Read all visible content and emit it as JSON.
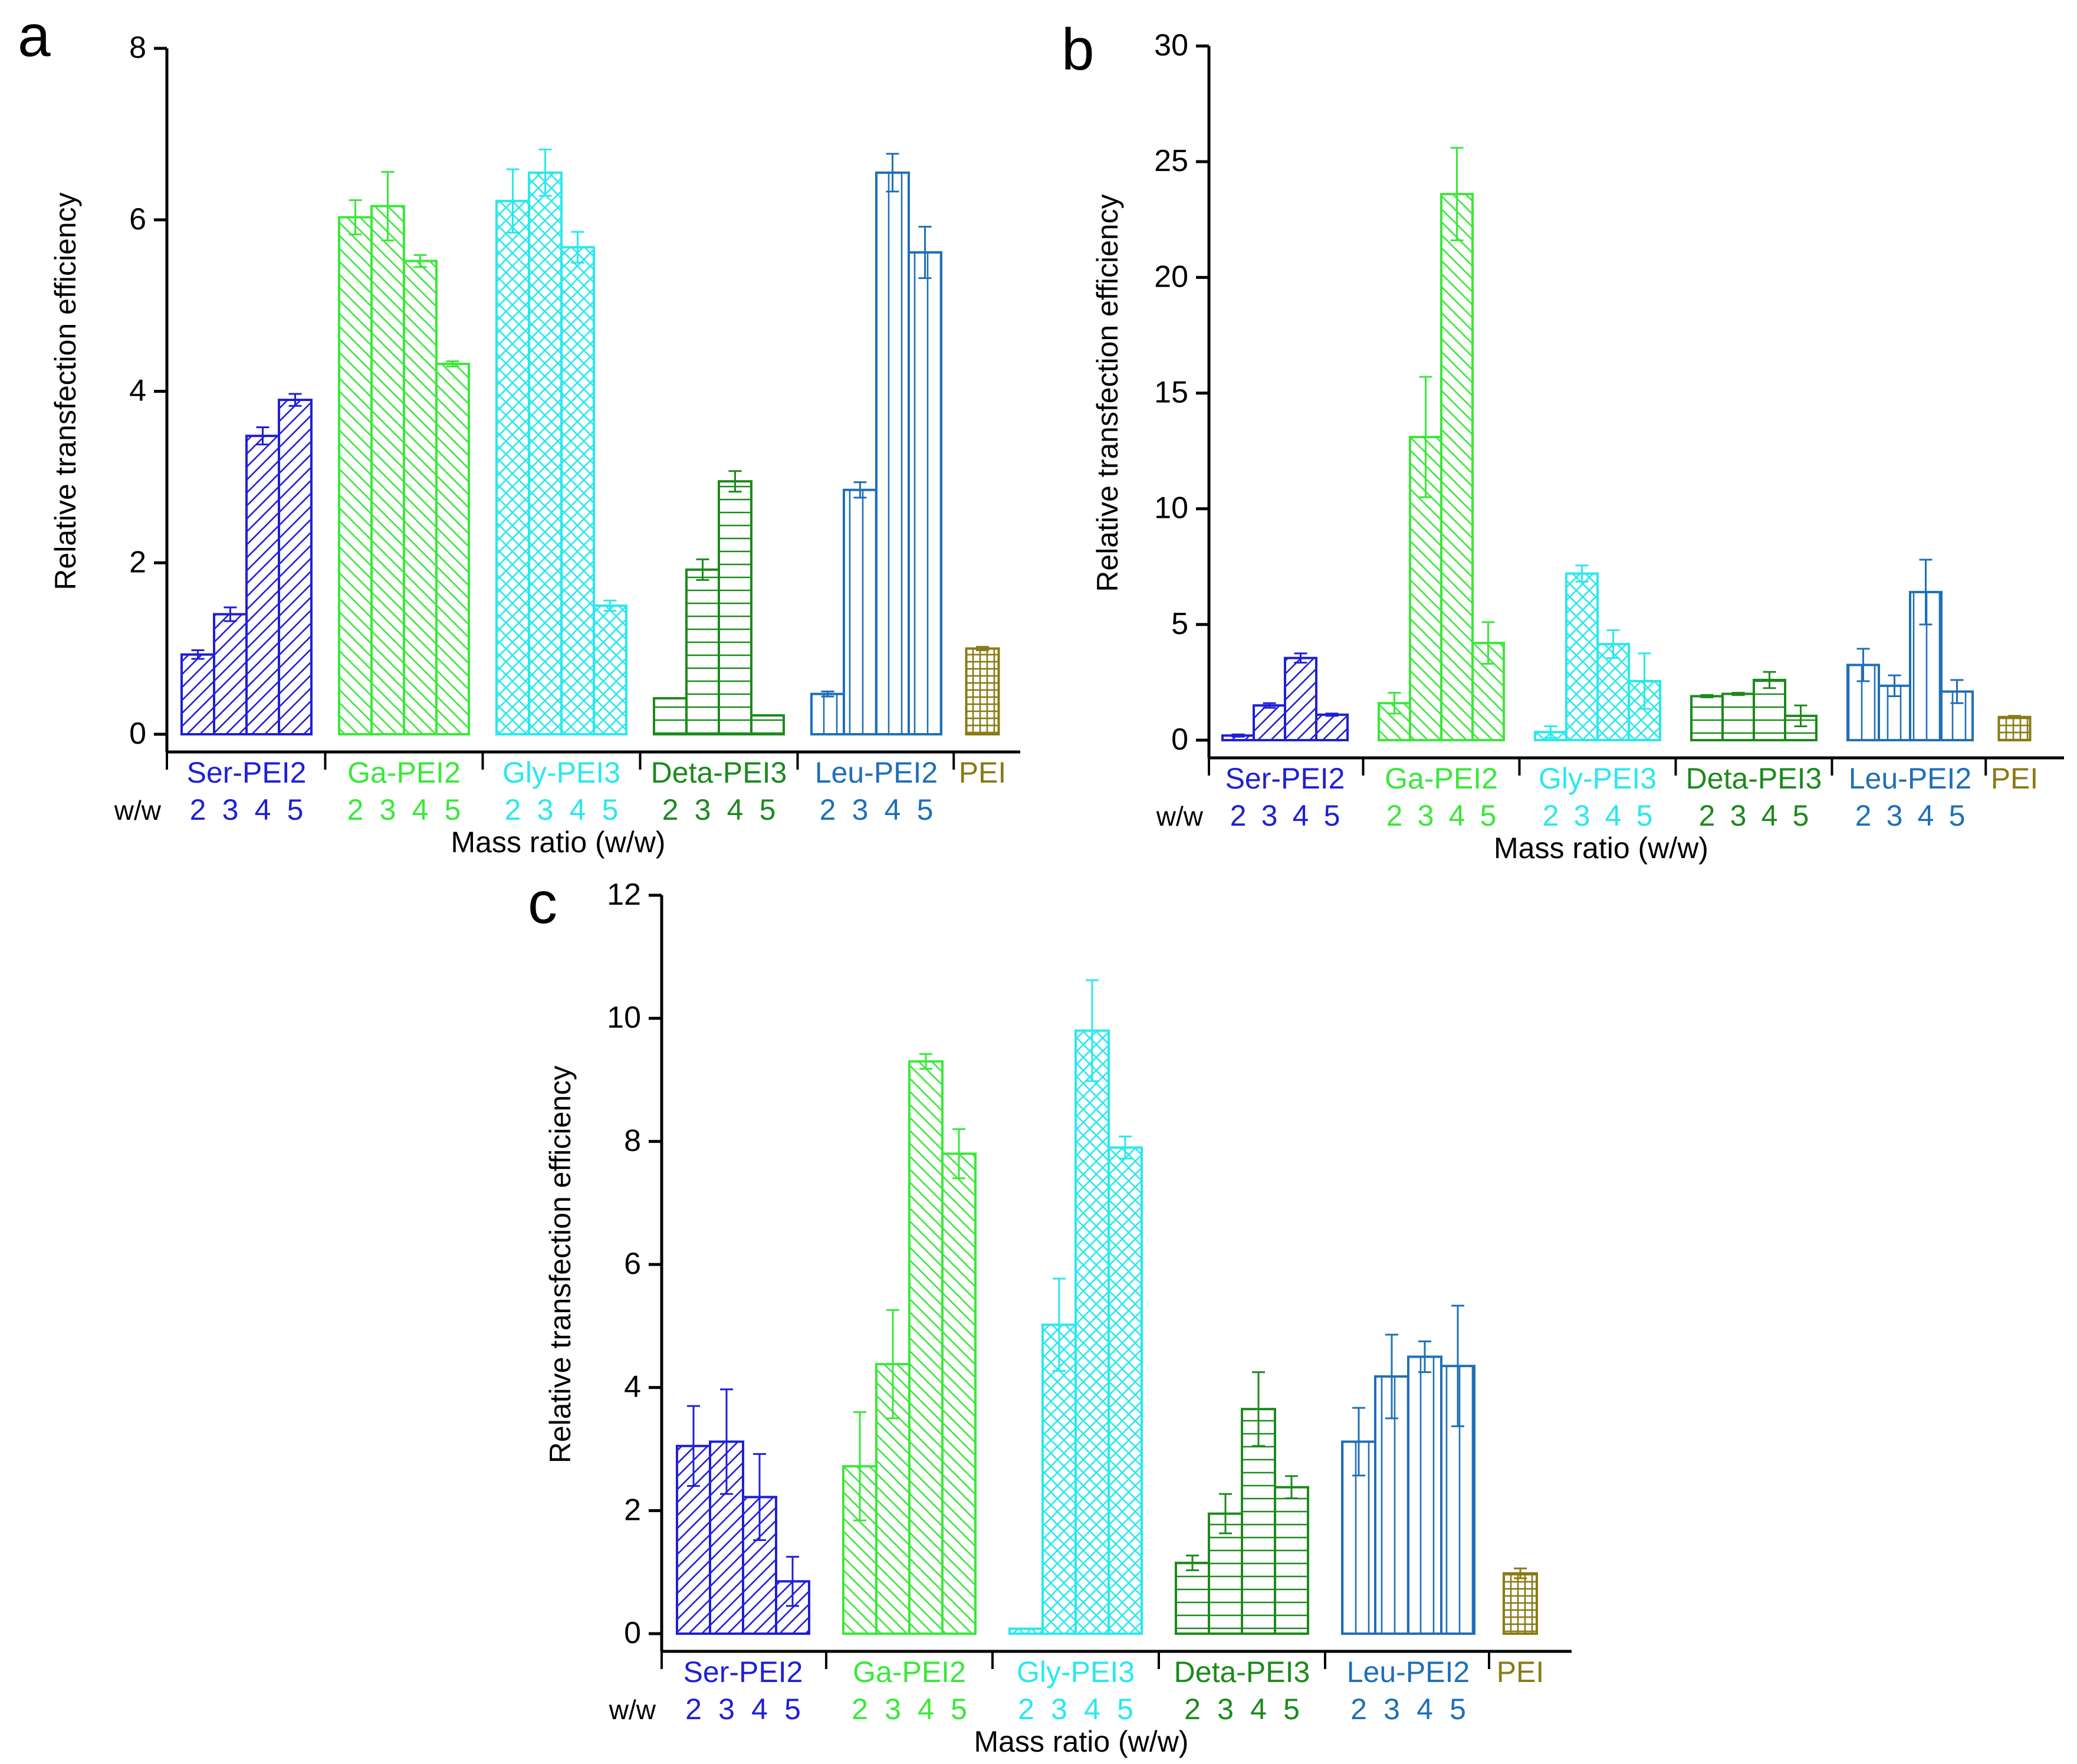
{
  "figure": {
    "xlabel_common": "Mass ratio (w/w)",
    "ylabel_common": "Relative transfection efficiency",
    "ww_label": "w/w"
  },
  "colors": {
    "Ser-PEI2": "#1f1fd6",
    "Ga-PEI2": "#3ae83a",
    "Gly-PEI3": "#2ae8ee",
    "Deta-PEI3": "#1c8a1c",
    "Leu-PEI2": "#1f6fb8",
    "PEI": "#8a7a14"
  },
  "patterns": {
    "Ser-PEI2": "diag-right",
    "Ga-PEI2": "diag-left",
    "Gly-PEI3": "crosshatch",
    "Deta-PEI3": "horizontal",
    "Leu-PEI2": "vertical",
    "PEI": "grid"
  },
  "chart_data": [
    {
      "panel": "a",
      "type": "bar",
      "ylabel": "Relative transfection efficiency",
      "xlabel": "Mass ratio (w/w)",
      "ylim": [
        0,
        8
      ],
      "yticks": [
        0,
        2,
        4,
        6,
        8
      ],
      "ww_label": "w/w",
      "groups": [
        {
          "name": "Ser-PEI2",
          "ratios": [
            "2",
            "3",
            "4",
            "5"
          ],
          "values": [
            0.93,
            1.4,
            3.48,
            3.9
          ],
          "errors": [
            0.05,
            0.08,
            0.1,
            0.07
          ]
        },
        {
          "name": "Ga-PEI2",
          "ratios": [
            "2",
            "3",
            "4",
            "5"
          ],
          "values": [
            6.03,
            6.16,
            5.52,
            4.32
          ],
          "errors": [
            0.2,
            0.4,
            0.07,
            0.03
          ]
        },
        {
          "name": "Gly-PEI3",
          "ratios": [
            "2",
            "3",
            "4",
            "5"
          ],
          "values": [
            6.22,
            6.55,
            5.68,
            1.5
          ],
          "errors": [
            0.37,
            0.27,
            0.18,
            0.06
          ]
        },
        {
          "name": "Deta-PEI3",
          "ratios": [
            "2",
            "3",
            "4",
            "5"
          ],
          "values": [
            0.42,
            1.92,
            2.95,
            0.22
          ],
          "errors": [
            0.0,
            0.12,
            0.12,
            0.0
          ]
        },
        {
          "name": "Leu-PEI2",
          "ratios": [
            "2",
            "3",
            "4",
            "5"
          ],
          "values": [
            0.47,
            2.85,
            6.55,
            5.62
          ],
          "errors": [
            0.03,
            0.09,
            0.22,
            0.3
          ]
        },
        {
          "name": "PEI",
          "ratios": [],
          "values": [
            1.0
          ],
          "errors": [
            0.02
          ]
        }
      ]
    },
    {
      "panel": "b",
      "type": "bar",
      "ylabel": "Relative transfection efficiency",
      "xlabel": "Mass ratio (w/w)",
      "ylim": [
        0,
        30
      ],
      "yticks": [
        0,
        5,
        10,
        15,
        20,
        25,
        30
      ],
      "ww_label": "w/w",
      "groups": [
        {
          "name": "Ser-PEI2",
          "ratios": [
            "2",
            "3",
            "4",
            "5"
          ],
          "values": [
            0.2,
            1.5,
            3.55,
            1.1
          ],
          "errors": [
            0.05,
            0.1,
            0.2,
            0.05
          ]
        },
        {
          "name": "Ga-PEI2",
          "ratios": [
            "2",
            "3",
            "4",
            "5"
          ],
          "values": [
            1.6,
            13.1,
            23.6,
            4.2
          ],
          "errors": [
            0.45,
            2.6,
            2.0,
            0.9
          ]
        },
        {
          "name": "Gly-PEI3",
          "ratios": [
            "2",
            "3",
            "4",
            "5"
          ],
          "values": [
            0.35,
            7.2,
            4.15,
            2.55
          ],
          "errors": [
            0.25,
            0.35,
            0.6,
            1.2
          ]
        },
        {
          "name": "Deta-PEI3",
          "ratios": [
            "2",
            "3",
            "4",
            "5"
          ],
          "values": [
            1.9,
            2.0,
            2.6,
            1.05
          ],
          "errors": [
            0.05,
            0.05,
            0.35,
            0.45
          ]
        },
        {
          "name": "Leu-PEI2",
          "ratios": [
            "2",
            "3",
            "4",
            "5"
          ],
          "values": [
            3.25,
            2.35,
            6.4,
            2.1
          ],
          "errors": [
            0.7,
            0.45,
            1.4,
            0.5
          ]
        },
        {
          "name": "PEI",
          "ratios": [],
          "values": [
            1.0
          ],
          "errors": [
            0.05
          ]
        }
      ]
    },
    {
      "panel": "c",
      "type": "bar",
      "ylabel": "Relative transfection efficiency",
      "xlabel": "Mass ratio (w/w)",
      "ylim": [
        0,
        12
      ],
      "yticks": [
        0,
        2,
        4,
        6,
        8,
        10,
        12
      ],
      "ww_label": "w/w",
      "groups": [
        {
          "name": "Ser-PEI2",
          "ratios": [
            "2",
            "3",
            "4",
            "5"
          ],
          "values": [
            3.05,
            3.12,
            2.22,
            0.85
          ],
          "errors": [
            0.65,
            0.85,
            0.7,
            0.4
          ]
        },
        {
          "name": "Ga-PEI2",
          "ratios": [
            "2",
            "3",
            "4",
            "5"
          ],
          "values": [
            2.72,
            4.38,
            9.3,
            7.8
          ],
          "errors": [
            0.88,
            0.88,
            0.12,
            0.4
          ]
        },
        {
          "name": "Gly-PEI3",
          "ratios": [
            "2",
            "3",
            "4",
            "5"
          ],
          "values": [
            0.08,
            5.02,
            9.8,
            7.9
          ],
          "errors": [
            0.0,
            0.75,
            0.82,
            0.18
          ]
        },
        {
          "name": "Deta-PEI3",
          "ratios": [
            "2",
            "3",
            "4",
            "5"
          ],
          "values": [
            1.15,
            1.95,
            3.65,
            2.38
          ],
          "errors": [
            0.12,
            0.32,
            0.6,
            0.18
          ]
        },
        {
          "name": "Leu-PEI2",
          "ratios": [
            "2",
            "3",
            "4",
            "5"
          ],
          "values": [
            3.12,
            4.18,
            4.5,
            4.35
          ],
          "errors": [
            0.55,
            0.68,
            0.25,
            0.98
          ]
        },
        {
          "name": "PEI",
          "ratios": [],
          "values": [
            0.98
          ],
          "errors": [
            0.08
          ]
        }
      ]
    }
  ]
}
